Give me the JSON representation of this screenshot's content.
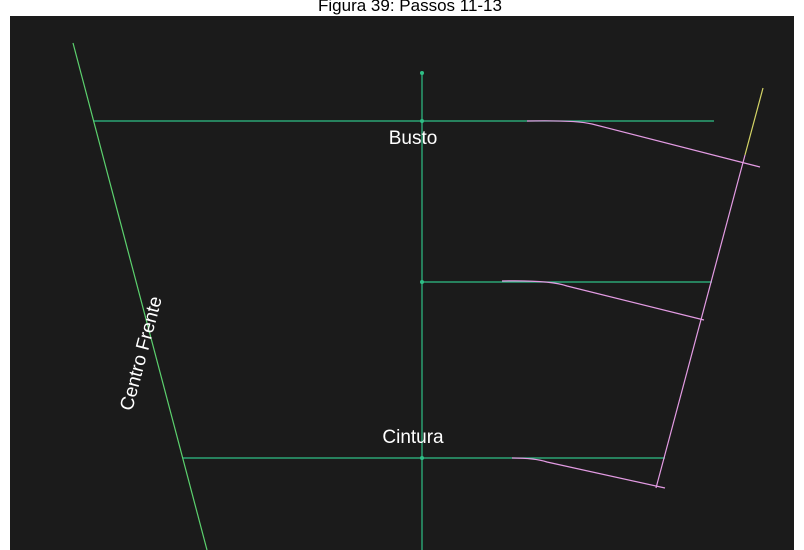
{
  "title": "Figura 39: Passos 11-13",
  "labels": {
    "busto": "Busto",
    "cintura": "Cintura",
    "centro_frente": "Centro Frente"
  }
}
